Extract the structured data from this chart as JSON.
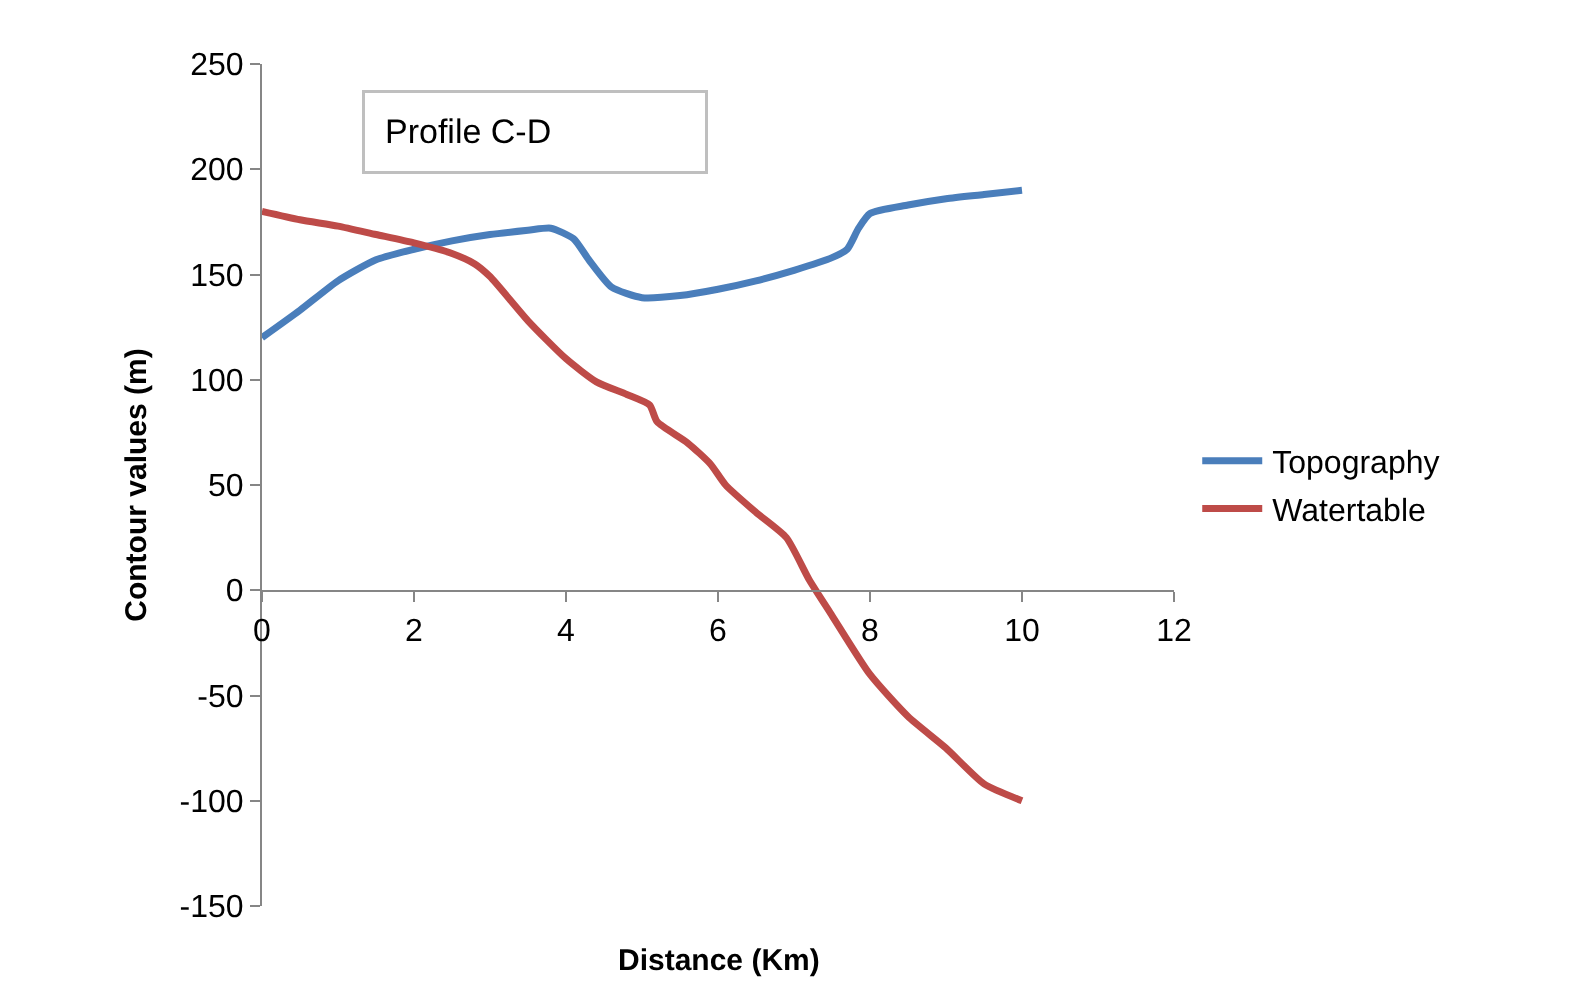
{
  "chart_data": {
    "type": "line",
    "title": "Profile C-D",
    "xlabel": "Distance (Km)",
    "ylabel": "Contour values (m)",
    "xlim": [
      0,
      12
    ],
    "xticks": [
      0,
      2,
      4,
      6,
      8,
      10,
      12
    ],
    "ylim": [
      -150,
      250
    ],
    "yticks": [
      -150,
      -100,
      -50,
      0,
      50,
      100,
      150,
      200,
      250
    ],
    "grid": false,
    "legend": "right",
    "marker": "none",
    "line_style": "solid",
    "series": [
      {
        "name": "Topography",
        "color": "#4a7ebb",
        "x": [
          0,
          0.5,
          1,
          1.5,
          2,
          2.5,
          3,
          3.5,
          3.8,
          4.1,
          4.3,
          4.6,
          5,
          5.5,
          6,
          6.5,
          7,
          7.5,
          7.7,
          7.85,
          8,
          8.5,
          9,
          9.5,
          10
        ],
        "values": [
          120,
          133,
          147,
          157,
          162,
          166,
          169,
          171,
          172,
          167,
          157,
          144,
          139,
          140,
          143,
          147,
          152,
          158,
          162,
          172,
          179,
          183,
          186,
          188,
          190
        ]
      },
      {
        "name": "Watertable",
        "color": "#be4b48",
        "x": [
          0,
          0.5,
          1,
          1.5,
          2,
          2.5,
          2.8,
          3,
          3.5,
          4,
          4.4,
          4.8,
          5.1,
          5.2,
          5.6,
          5.9,
          6.1,
          6.5,
          6.9,
          7.2,
          7.5,
          8,
          8.5,
          9,
          9.5,
          10
        ],
        "values": [
          180,
          176,
          173,
          169,
          165,
          160,
          155,
          149,
          128,
          110,
          99,
          93,
          88,
          80,
          70,
          60,
          50,
          37,
          25,
          5,
          -12,
          -40,
          -60,
          -75,
          -92,
          -100
        ]
      }
    ]
  }
}
